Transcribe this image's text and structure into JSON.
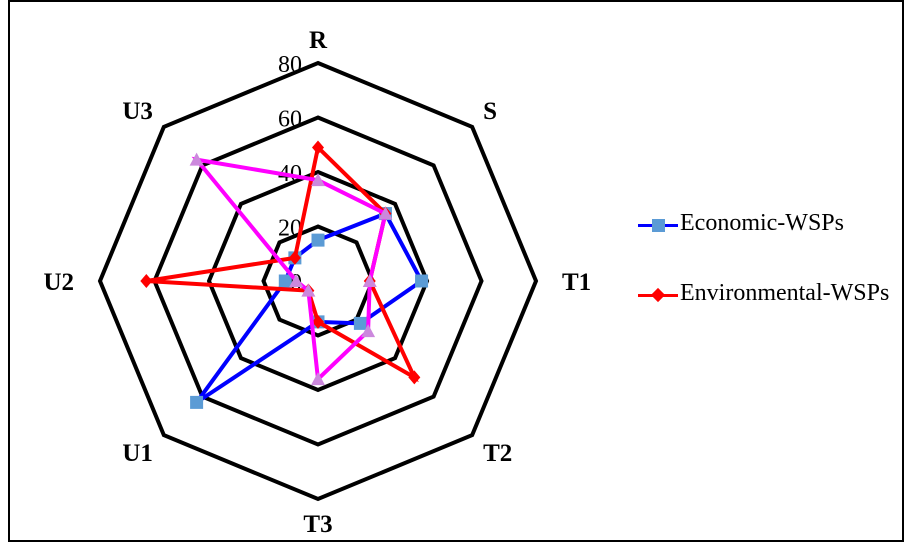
{
  "chart_data": {
    "type": "radar",
    "axes": [
      "R",
      "S",
      "T1",
      "T2",
      "T3",
      "U1",
      "U2",
      "U3"
    ],
    "radial_ticks": [
      "0",
      "20",
      "40",
      "60",
      "80"
    ],
    "rlim": [
      0,
      80
    ],
    "series": [
      {
        "name": "Economic-WSPs",
        "color": "#0000ff",
        "marker_color": "#5b9bd5",
        "marker": "square",
        "values": [
          15,
          35,
          38,
          22,
          15,
          63,
          12,
          12
        ]
      },
      {
        "name": "Environmental-WSPs",
        "color": "#ff0000",
        "marker_color": "#ff0000",
        "marker": "diamond",
        "values": [
          49,
          35,
          19,
          50,
          15,
          5,
          63,
          12
        ]
      },
      {
        "color": "#ff00ff",
        "marker_color": "#cc88dd",
        "marker": "triangle",
        "values": [
          37,
          35,
          19,
          26,
          36,
          5,
          8,
          63
        ]
      }
    ],
    "legend_position": "right"
  },
  "legend": {
    "items": [
      {
        "label": "Economic-WSPs",
        "color": "#0000ff",
        "marker_color": "#5b9bd5",
        "marker": "square"
      },
      {
        "label": "Environmental-WSPs",
        "color": "#ff0000",
        "marker_color": "#ff0000",
        "marker": "diamond"
      }
    ]
  }
}
